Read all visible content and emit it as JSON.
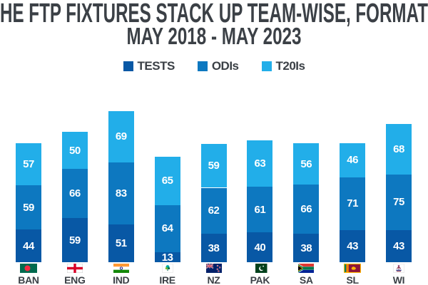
{
  "title": {
    "line1": "HE FTP FIXTURES STACK UP TEAM-WISE, FORMAT",
    "line2": "MAY 2018 - MAY 2023"
  },
  "colors": {
    "background": "#ffffff",
    "title_text": "#3b4046",
    "bar_value_text": "#ffffff",
    "tests": "#0858a5",
    "odis": "#0d78c0",
    "t20is": "#22aee9"
  },
  "legend": {
    "position": "top",
    "items": [
      {
        "label": "TESTS",
        "color": "#0858a5",
        "icon": "tests-swatch-icon"
      },
      {
        "label": "ODIs",
        "color": "#0d78c0",
        "icon": "odis-swatch-icon"
      },
      {
        "label": "T20Is",
        "color": "#22aee9",
        "icon": "t20is-swatch-icon"
      }
    ]
  },
  "chart_data": {
    "type": "bar",
    "stacked": true,
    "title": "HE FTP FIXTURES STACK UP TEAM-WISE, FORMAT / MAY 2018 - MAY 2023",
    "xlabel": "",
    "ylabel": "",
    "axes_shown": false,
    "grid": false,
    "value_labels_shown": true,
    "legend_position": "top",
    "categories": [
      "BAN",
      "ENG",
      "IND",
      "IRE",
      "NZ",
      "PAK",
      "SA",
      "SL",
      "WI"
    ],
    "series": [
      {
        "name": "TESTS",
        "color": "#0858a5",
        "values": [
          44,
          59,
          51,
          13,
          38,
          40,
          38,
          43,
          43
        ]
      },
      {
        "name": "ODIs",
        "color": "#0d78c0",
        "values": [
          59,
          66,
          83,
          64,
          62,
          61,
          66,
          71,
          75
        ]
      },
      {
        "name": "T20Is",
        "color": "#22aee9",
        "values": [
          57,
          50,
          69,
          65,
          59,
          63,
          56,
          46,
          68
        ]
      }
    ],
    "totals": [
      160,
      175,
      203,
      142,
      159,
      164,
      160,
      160,
      186
    ],
    "flag_icons": [
      "bangladesh-flag",
      "england-flag",
      "india-flag",
      "ireland-flag",
      "new-zealand-flag",
      "pakistan-flag",
      "south-africa-flag",
      "sri-lanka-flag",
      "west-indies-flag"
    ]
  }
}
